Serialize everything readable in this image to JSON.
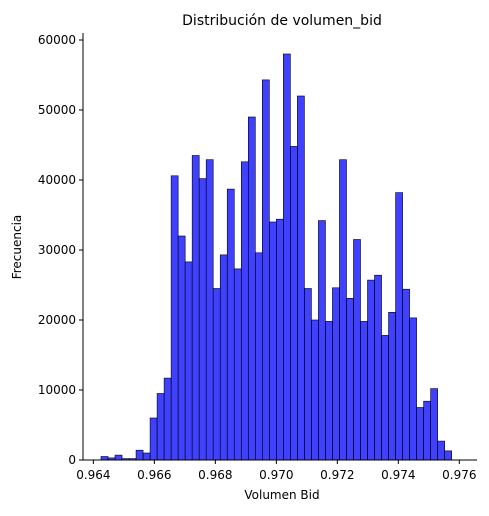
{
  "chart_data": {
    "type": "bar",
    "title": "Distribución de volumen_bid",
    "xlabel": "Volumen Bid",
    "ylabel": "Frecuencia",
    "xlim": [
      0.96366,
      0.97658
    ],
    "ylim": [
      0,
      61000
    ],
    "xticks": [
      0.964,
      0.966,
      0.968,
      0.97,
      0.972,
      0.974,
      0.976
    ],
    "xtick_labels": [
      "0.964",
      "0.966",
      "0.968",
      "0.970",
      "0.972",
      "0.974",
      "0.976"
    ],
    "yticks": [
      0,
      10000,
      20000,
      30000,
      40000,
      50000,
      60000
    ],
    "ytick_labels": [
      "0",
      "10000",
      "20000",
      "30000",
      "40000",
      "50000",
      "60000"
    ],
    "grid": false,
    "bin_start": 0.96425,
    "bin_width": 0.00023,
    "values": [
      500,
      300,
      700,
      200,
      200,
      1400,
      1000,
      6000,
      9500,
      11700,
      40600,
      32000,
      28300,
      43500,
      40200,
      42900,
      24500,
      29300,
      38700,
      27300,
      42600,
      49000,
      29600,
      54300,
      34000,
      34400,
      58000,
      44800,
      52000,
      24500,
      20000,
      34200,
      19800,
      24600,
      42900,
      23100,
      31500,
      19800,
      25700,
      26400,
      17800,
      21100,
      38200,
      24400,
      20300,
      7500,
      8400,
      10200,
      2700,
      1300
    ],
    "colors": {
      "bar_fill": "#0000ff",
      "bar_fill_opacity": 0.75,
      "bar_edge": "#000000"
    }
  }
}
